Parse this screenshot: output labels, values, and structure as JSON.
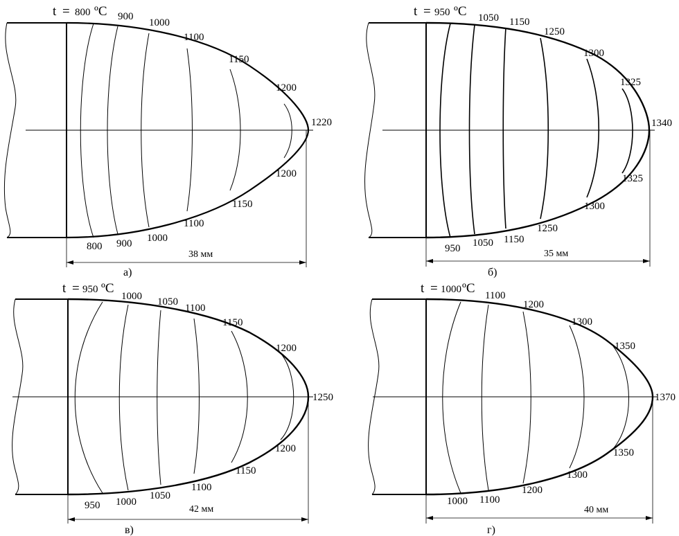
{
  "panels": [
    {
      "id": "a",
      "title_t": "t",
      "title_eq": "=",
      "title_value": "800",
      "title_unit": "ºC",
      "caption": "а)",
      "length": "38 мм",
      "top_labels": [
        "900",
        "1000",
        "1100",
        "1150",
        "1200"
      ],
      "tip_label": "1220",
      "bottom_labels": [
        "800",
        "900",
        "1000",
        "1100",
        "1150",
        "1200"
      ]
    },
    {
      "id": "b",
      "title_t": "t",
      "title_eq": "=",
      "title_value": "950",
      "title_unit": "ºC",
      "caption": "б)",
      "length": "35 мм",
      "top_labels": [
        "1050",
        "1150",
        "1250",
        "1300",
        "1325"
      ],
      "tip_label": "1340",
      "bottom_labels": [
        "950",
        "1050",
        "1150",
        "1250",
        "1300",
        "1325"
      ]
    },
    {
      "id": "c",
      "title_t": "t",
      "title_eq": "=",
      "title_value": "950",
      "title_unit": "ºC",
      "caption": "в)",
      "length": "42 мм",
      "top_labels": [
        "1000",
        "1050",
        "1100",
        "1150",
        "1200"
      ],
      "tip_label": "1250",
      "bottom_labels": [
        "950",
        "1000",
        "1050",
        "1100",
        "1150",
        "1200"
      ]
    },
    {
      "id": "d",
      "title_t": "t",
      "title_eq": "=",
      "title_value": "1000",
      "title_unit": "ºC",
      "caption": "г)",
      "length": "40 мм",
      "top_labels": [
        "1100",
        "1200",
        "1300",
        "1350"
      ],
      "tip_label": "1370",
      "bottom_labels": [
        "1000",
        "1100",
        "1200",
        "1300",
        "1350"
      ]
    }
  ]
}
